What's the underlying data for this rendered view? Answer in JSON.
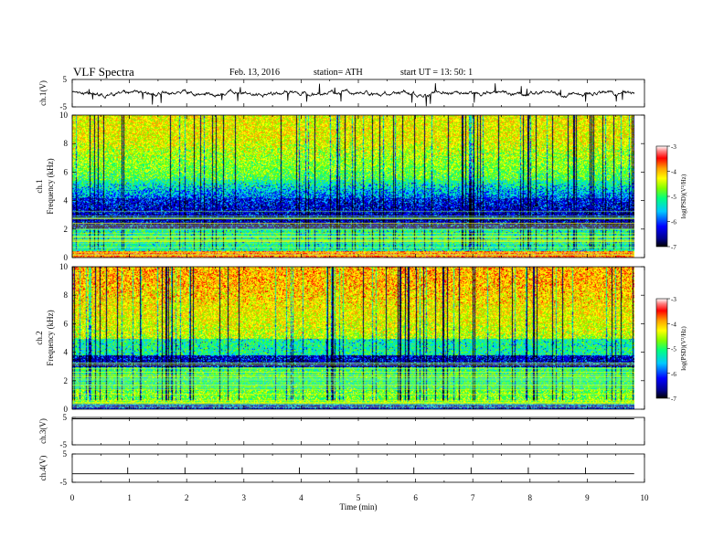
{
  "header": {
    "title": "VLF  Spectra",
    "date": "Feb. 13, 2016",
    "station": "station= ATH",
    "start": "start  UT =   13: 50: 1"
  },
  "colors": {
    "spectrogram_scale": [
      "#000000",
      "#00008b",
      "#0000ff",
      "#00c8ff",
      "#00ff80",
      "#80ff00",
      "#ffff00",
      "#ffa000",
      "#ff0000",
      "#ff8080",
      "#ffffff"
    ]
  },
  "chart_data": [
    {
      "type": "line",
      "panel": "ch1-waveform",
      "ylabel": "ch.1(V)",
      "ylim": [
        -5,
        5
      ],
      "yticks": [
        "5",
        "-5"
      ],
      "xlim": [
        0,
        10
      ],
      "description_values": "noisy waveform around 0 V with spikes"
    },
    {
      "type": "heatmap",
      "panel": "ch1-spectrogram",
      "ylabel_top": "ch.1",
      "ylabel": "Frequency  (kHz)",
      "ylim": [
        0,
        10
      ],
      "yticks": [
        "0",
        "2",
        "4",
        "6",
        "8",
        "10"
      ],
      "xlim": [
        0,
        10
      ],
      "colorbar": {
        "label": "log(PSD)(V²/Hz)",
        "range": [
          -7,
          -3
        ],
        "ticks": [
          "-3",
          "-4",
          "-5",
          "-6",
          "-7"
        ]
      }
    },
    {
      "type": "heatmap",
      "panel": "ch2-spectrogram",
      "ylabel_top": "ch.2",
      "ylabel": "Frequency  (kHz)",
      "ylim": [
        0,
        10
      ],
      "yticks": [
        "0",
        "2",
        "4",
        "6",
        "8",
        "10"
      ],
      "xlim": [
        0,
        10
      ],
      "colorbar": {
        "label": "log(PSD)(V²/Hz)",
        "range": [
          -7,
          -3
        ],
        "ticks": [
          "-3",
          "-4",
          "-5",
          "-6",
          "-7"
        ]
      }
    },
    {
      "type": "line",
      "panel": "ch3-waveform",
      "ylabel": "ch.3(V)",
      "ylim": [
        -5,
        5
      ],
      "yticks": [
        "5",
        "-5"
      ],
      "xlim": [
        0,
        10
      ]
    },
    {
      "type": "line",
      "panel": "ch4-waveform",
      "ylabel": "ch.4(V)",
      "ylim": [
        -5,
        5
      ],
      "yticks": [
        "5",
        "-5"
      ],
      "xlim": [
        0,
        10
      ],
      "xlabel": "Time  (min)",
      "xticks": [
        "0",
        "1",
        "2",
        "3",
        "4",
        "5",
        "6",
        "7",
        "8",
        "9",
        "10"
      ]
    }
  ]
}
